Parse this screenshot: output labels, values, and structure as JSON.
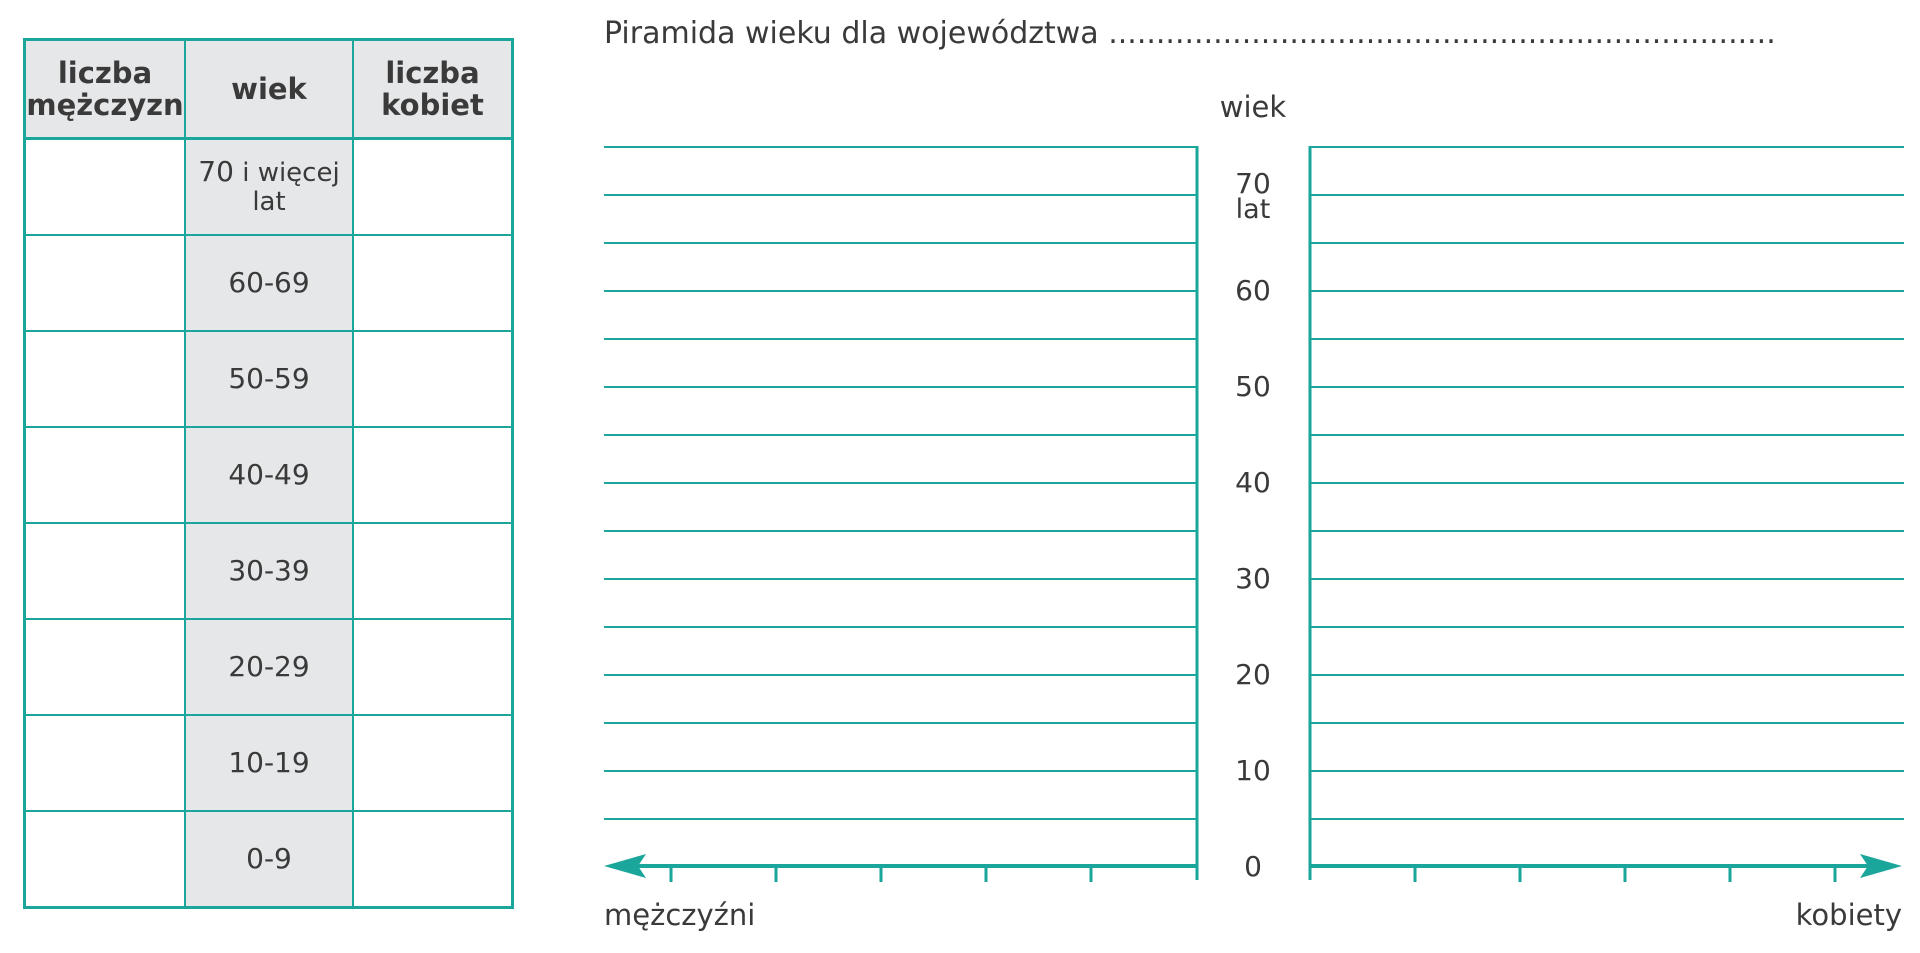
{
  "table": {
    "headers": {
      "men_line1": "liczba",
      "men_line2": "mężczyzn",
      "age": "wiek",
      "women_line1": "liczba",
      "women_line2": "kobiet"
    },
    "rows": [
      {
        "age_line1": "70",
        "age_line1_rest": " i więcej",
        "age_line2": "lat"
      },
      {
        "age": "60-69"
      },
      {
        "age": "50-59"
      },
      {
        "age": "40-49"
      },
      {
        "age": "30-39"
      },
      {
        "age": "20-29"
      },
      {
        "age": "10-19"
      },
      {
        "age": "0-9"
      }
    ]
  },
  "pyramid": {
    "title": "Piramida wieku dla województwa ......................................................................",
    "age_axis_label": "wiek",
    "age_ticks": [
      "70",
      "60",
      "50",
      "40",
      "30",
      "20",
      "10",
      "0"
    ],
    "top_tick_unit": "lat",
    "left_axis_label": "mężczyźni",
    "right_axis_label": "kobiety"
  },
  "colors": {
    "line": "#1aa69a",
    "header_bg": "#e6e7e8",
    "text": "#3a3a3a"
  }
}
